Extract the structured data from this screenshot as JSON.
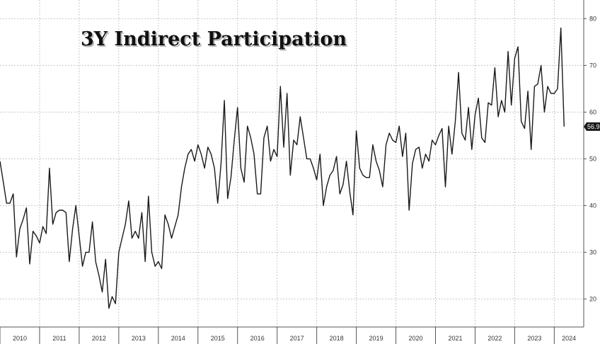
{
  "chart_data": {
    "type": "line",
    "title": "3Y Indirect Participation",
    "xlabel": "",
    "ylabel": "",
    "ylim": [
      14,
      84
    ],
    "xlim": [
      "2010-01",
      "2024-08"
    ],
    "y_ticks": [
      20,
      30,
      40,
      50,
      60,
      70,
      80
    ],
    "x_tick_labels": [
      "2010",
      "2011",
      "2012",
      "2013",
      "2014",
      "2015",
      "2016",
      "2017",
      "2018",
      "2019",
      "2020",
      "2021",
      "2022",
      "2023",
      "2024"
    ],
    "grid": true,
    "y_axis_side": "right",
    "last_value_label": "56.9",
    "line_color": "#1a1a1a",
    "last_label_color": "#1a1a1a",
    "series": [
      {
        "x_start": "2010-01",
        "frequency": "monthly",
        "values": [
          49.5,
          45,
          40.5,
          40.5,
          42.5,
          29,
          35,
          37,
          39.5,
          27.5,
          34.5,
          33.5,
          32,
          35.5,
          34,
          48,
          36,
          38.5,
          39,
          39,
          38.5,
          28,
          35,
          40,
          33.5,
          27,
          30,
          30,
          36.5,
          28,
          25,
          21.5,
          28.5,
          18,
          20.5,
          19,
          30,
          33,
          36,
          41,
          33,
          34.5,
          33,
          38.5,
          28,
          42,
          30,
          27,
          28,
          26.5,
          38,
          36,
          33,
          35.5,
          38,
          44,
          48,
          51,
          52,
          49.5,
          53,
          51,
          48,
          52.5,
          51,
          48,
          40.5,
          49,
          62.5,
          41.5,
          46,
          54,
          61,
          48,
          45,
          57,
          54.5,
          51,
          42.5,
          42.5,
          54.5,
          57,
          49.5,
          52,
          50.5,
          65.5,
          52.5,
          64,
          46.5,
          54,
          53,
          59,
          54.5,
          50,
          50,
          48,
          45.5,
          51,
          40,
          44,
          46.5,
          47.5,
          50.5,
          42.5,
          44.5,
          49.5,
          43,
          38,
          56,
          48,
          46.5,
          46,
          46,
          53,
          49.5,
          47.5,
          44,
          53,
          55.5,
          54,
          53.5,
          57,
          50.5,
          55.5,
          39,
          49,
          52,
          52.5,
          48,
          51,
          49.5,
          54,
          53,
          55,
          56.5,
          44,
          57,
          51,
          58,
          68.5,
          55.5,
          54,
          61,
          52,
          59.5,
          63,
          54.5,
          53.5,
          62,
          61.5,
          69.5,
          59,
          62.5,
          60,
          73,
          61.5,
          71.5,
          74,
          58,
          56.5,
          64.5,
          52,
          65.5,
          66,
          70,
          60,
          65.5,
          64,
          64,
          65,
          78,
          56.9
        ]
      }
    ]
  }
}
